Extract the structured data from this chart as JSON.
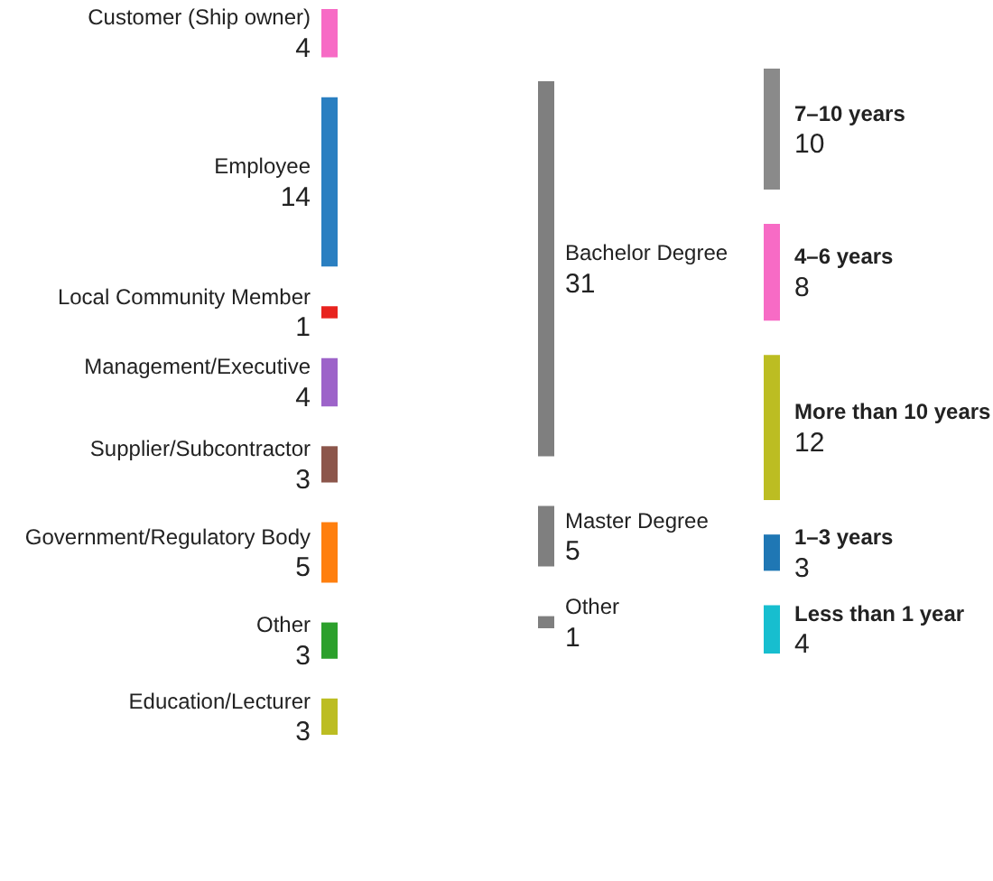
{
  "chart_data": [
    {
      "type": "other",
      "data_labels": true,
      "categories": [
        "Customer (Ship owner)",
        "Employee",
        "Local Community Member",
        "Management/Executive",
        "Supplier/Subcontractor",
        "Government/Regulatory Body",
        "Other",
        "Education/Lecturer"
      ],
      "values": [
        4,
        14,
        1,
        4,
        3,
        5,
        3,
        3
      ],
      "colors": [
        "#f76bc5",
        "#2a7fc1",
        "#e8231e",
        "#9d63c9",
        "#8c564b",
        "#ff7f0e",
        "#2ca02c",
        "#bcbd22"
      ]
    },
    {
      "type": "other",
      "data_labels": true,
      "categories": [
        "Bachelor Degree",
        "Master Degree",
        "Other"
      ],
      "values": [
        31,
        5,
        1
      ],
      "colors": [
        "#7f7f7f",
        "#7f7f7f",
        "#7f7f7f"
      ]
    },
    {
      "type": "other",
      "data_labels": true,
      "categories": [
        "7–10 years",
        "4–6 years",
        "More than 10 years",
        "1–3 years",
        "Less than 1 year"
      ],
      "values": [
        10,
        8,
        12,
        3,
        4
      ],
      "colors": [
        "#8a8a8a",
        "#f76bc5",
        "#bcbd22",
        "#1f77b4",
        "#17becf"
      ]
    }
  ]
}
